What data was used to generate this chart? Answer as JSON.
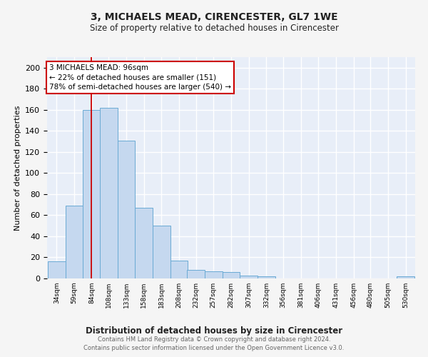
{
  "title1": "3, MICHAELS MEAD, CIRENCESTER, GL7 1WE",
  "title2": "Size of property relative to detached houses in Cirencester",
  "xlabel": "Distribution of detached houses by size in Cirencester",
  "ylabel": "Number of detached properties",
  "bin_edges": [
    34,
    59,
    84,
    108,
    133,
    158,
    183,
    208,
    232,
    257,
    282,
    307,
    332,
    356,
    381,
    406,
    431,
    456,
    480,
    505,
    530
  ],
  "bar_heights": [
    16,
    69,
    160,
    162,
    131,
    67,
    50,
    17,
    8,
    7,
    6,
    3,
    2,
    0,
    0,
    0,
    0,
    0,
    0,
    0,
    2
  ],
  "bar_color": "#c5d8ef",
  "bar_edge_color": "#6aaad4",
  "property_size": 96,
  "red_line_color": "#cc0000",
  "annotation_text": "3 MICHAELS MEAD: 96sqm\n← 22% of detached houses are smaller (151)\n78% of semi-detached houses are larger (540) →",
  "annotation_box_color": "#ffffff",
  "annotation_edge_color": "#cc0000",
  "ylim": [
    0,
    210
  ],
  "yticks": [
    0,
    20,
    40,
    60,
    80,
    100,
    120,
    140,
    160,
    180,
    200
  ],
  "background_color": "#e8eef8",
  "grid_color": "#ffffff",
  "footer": "Contains HM Land Registry data © Crown copyright and database right 2024.\nContains public sector information licensed under the Open Government Licence v3.0."
}
